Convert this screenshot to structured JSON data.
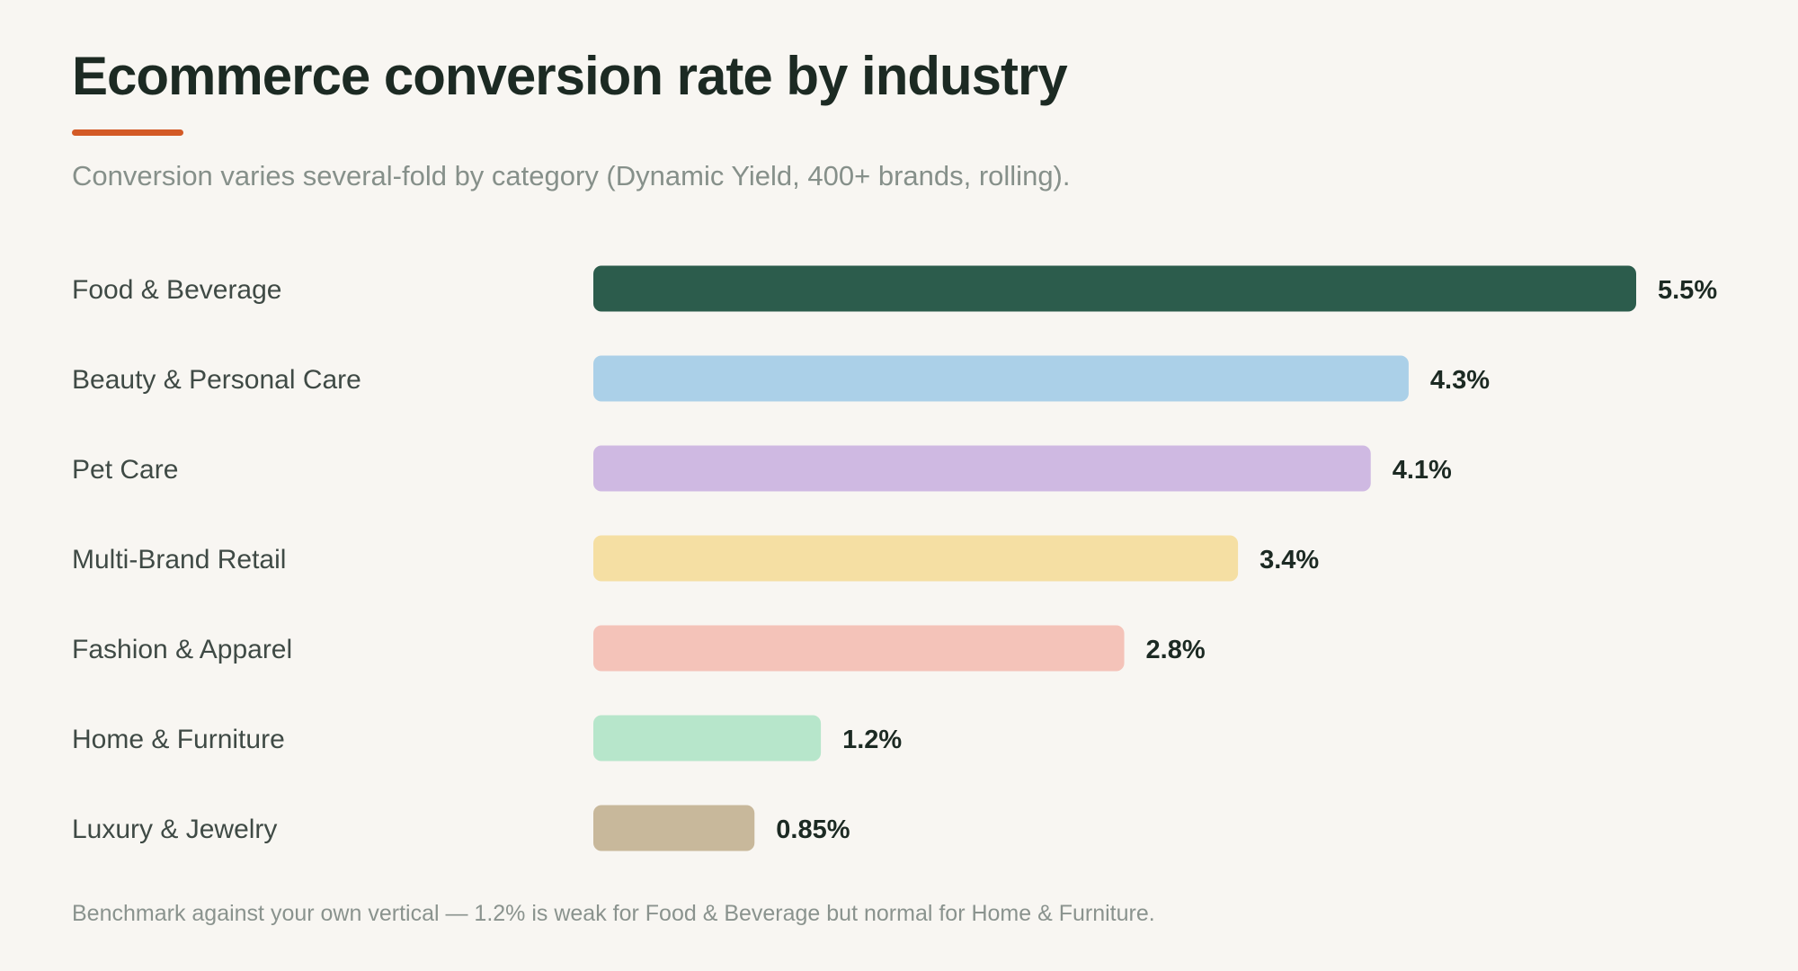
{
  "header": {
    "title": "Ecommerce conversion rate by industry",
    "subtitle": "Conversion varies several-fold by category (Dynamic Yield, 400+ brands, rolling).",
    "accent_color": "#d35a26"
  },
  "footer": {
    "note": "Benchmark against your own vertical — 1.2% is weak for Food & Beverage but normal for Home & Furniture."
  },
  "chart_data": {
    "type": "bar",
    "orientation": "horizontal",
    "title": "Ecommerce conversion rate by industry",
    "subtitle": "Conversion varies several-fold by category (Dynamic Yield, 400+ brands, rolling).",
    "xlabel": "",
    "ylabel": "",
    "unit": "%",
    "grid": false,
    "legend": "none",
    "xlim": [
      0,
      5.5
    ],
    "categories": [
      "Food & Beverage",
      "Beauty & Personal Care",
      "Pet Care",
      "Multi-Brand Retail",
      "Fashion & Apparel",
      "Home & Furniture",
      "Luxury & Jewelry"
    ],
    "values": [
      5.5,
      4.3,
      4.1,
      3.4,
      2.8,
      1.2,
      0.85
    ],
    "value_labels": [
      "5.5%",
      "4.3%",
      "4.1%",
      "3.4%",
      "2.8%",
      "1.2%",
      "0.85%"
    ],
    "colors": [
      "#2c5c4c",
      "#abd0e8",
      "#cfb9e2",
      "#f5dfa3",
      "#f4c3b9",
      "#b7e6cb",
      "#c8b89b"
    ]
  }
}
